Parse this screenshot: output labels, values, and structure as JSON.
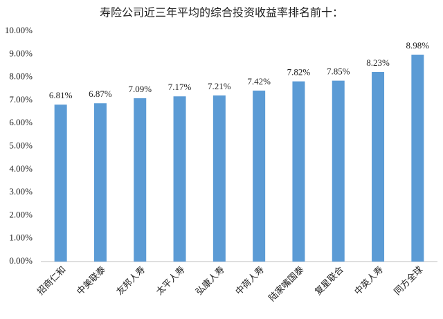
{
  "chart_data": {
    "type": "bar",
    "title": "寿险公司近三年平均的综合投资收益率排名前十：",
    "categories": [
      "招商仁和",
      "中美联泰",
      "友邦人寿",
      "太平人寿",
      "弘康人寿",
      "中荷人寿",
      "陆家嘴国泰",
      "复星联合",
      "中英人寿",
      "同方全球"
    ],
    "values": [
      6.81,
      6.87,
      7.09,
      7.17,
      7.21,
      7.42,
      7.82,
      7.85,
      8.23,
      8.98
    ],
    "value_labels": [
      "6.81%",
      "6.87%",
      "7.09%",
      "7.17%",
      "7.21%",
      "7.42%",
      "7.82%",
      "7.85%",
      "8.23%",
      "8.98%"
    ],
    "color": "#5b9bd5",
    "ylim": [
      0,
      10
    ],
    "yticks": [
      {
        "value": 0,
        "label": "0.00%"
      },
      {
        "value": 1,
        "label": "1.00%"
      },
      {
        "value": 2,
        "label": "2.00%"
      },
      {
        "value": 3,
        "label": "3.00%"
      },
      {
        "value": 4,
        "label": "4.00%"
      },
      {
        "value": 5,
        "label": "5.00%"
      },
      {
        "value": 6,
        "label": "6.00%"
      },
      {
        "value": 7,
        "label": "7.00%"
      },
      {
        "value": 8,
        "label": "8.00%"
      },
      {
        "value": 9,
        "label": "9.00%"
      },
      {
        "value": 10,
        "label": "10.00%"
      }
    ],
    "grid": false
  }
}
